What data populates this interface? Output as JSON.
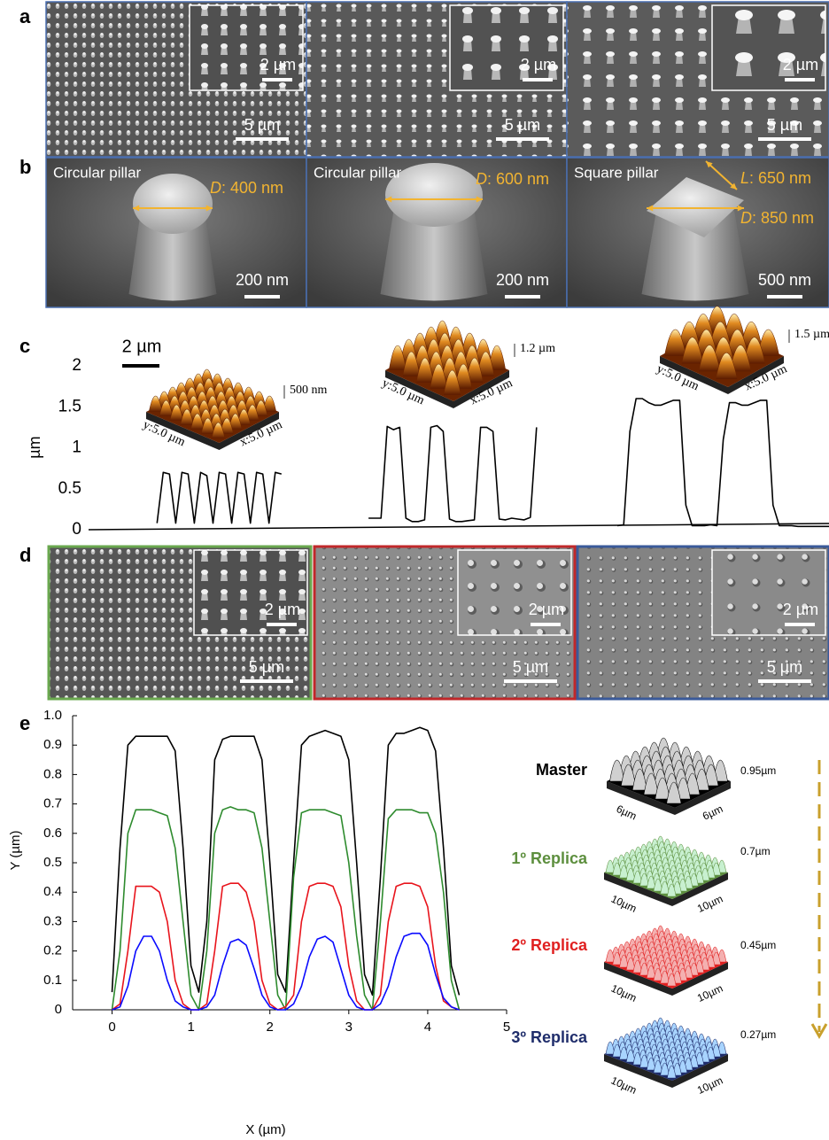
{
  "panels": {
    "a": {
      "label": "a",
      "images": [
        {
          "scale_bar": "5 µm",
          "inset_scale_bar": "2 µm"
        },
        {
          "scale_bar": "5 µm",
          "inset_scale_bar": "2 µm"
        },
        {
          "scale_bar": "5 µm",
          "inset_scale_bar": "2 µm"
        }
      ]
    },
    "b": {
      "label": "b",
      "images": [
        {
          "title": "Circular pillar",
          "dimensions": [
            {
              "symbol": "D",
              "text": ": 400 nm"
            }
          ],
          "scale_bar": "200 nm"
        },
        {
          "title": "Circular pillar",
          "dimensions": [
            {
              "symbol": "D",
              "text": ": 600 nm"
            }
          ],
          "scale_bar": "200 nm"
        },
        {
          "title": "Square pillar",
          "dimensions": [
            {
              "symbol": "L",
              "text": ": 650 nm"
            },
            {
              "symbol": "D",
              "text": ": 850 nm"
            }
          ],
          "scale_bar": "500 nm"
        }
      ]
    },
    "d": {
      "label": "d",
      "images": [
        {
          "scale_bar": "5 µm",
          "inset_scale_bar": "2 µm"
        },
        {
          "scale_bar": "5 µm",
          "inset_scale_bar": "2 µm"
        },
        {
          "scale_bar": "5 µm",
          "inset_scale_bar": "2 µm"
        }
      ]
    }
  },
  "chart_data": [
    {
      "type": "line",
      "panel_label": "c",
      "ylabel": "µm",
      "scale_bar": "2 µm",
      "ylim": [
        0,
        2
      ],
      "yticks": [
        0,
        0.5,
        1,
        1.5,
        2
      ],
      "insets": [
        {
          "z": "500 nm",
          "y": "y:5.0 µm",
          "x": "x:5.0 µm"
        },
        {
          "z": "1.2 µm",
          "y": "y:5.0 µm",
          "x": "x:5.0 µm"
        },
        {
          "z": "1.5 µm",
          "y": "y:5.0 µm",
          "x": "x:5.0 µm"
        }
      ],
      "series": [
        {
          "color": "#000000",
          "values": [
            null,
            null,
            null,
            null,
            null,
            null,
            null,
            null,
            null,
            null,
            null,
            0.08,
            0.7,
            0.68,
            0.08,
            0.7,
            0.68,
            0.08,
            0.7,
            0.66,
            0.08,
            0.7,
            0.68,
            0.08,
            0.7,
            0.68,
            0.08,
            0.7,
            0.68,
            0.08,
            0.7,
            0.68,
            null,
            null,
            null,
            null,
            null,
            null,
            null,
            null,
            null,
            null,
            null,
            null,
            null,
            0.14,
            0.14,
            0.14,
            1.26,
            1.22,
            1.25,
            0.14,
            0.1,
            0.1,
            0.12,
            1.25,
            1.27,
            1.2,
            0.13,
            0.1,
            0.1,
            0.11,
            0.12,
            1.25,
            1.25,
            1.2,
            0.13,
            0.12,
            0.14,
            0.13,
            0.12,
            0.15,
            1.25,
            null,
            null,
            null,
            null,
            null,
            null,
            null,
            null,
            null,
            null,
            null,
            null,
            0.05,
            0.06,
            1.2,
            1.6,
            1.6,
            1.55,
            1.52,
            1.52,
            1.55,
            1.58,
            1.58,
            0.3,
            0.05,
            0.05,
            0.05,
            0.06,
            0.05,
            1.1,
            1.55,
            1.55,
            1.52,
            1.52,
            1.55,
            1.58,
            1.58,
            0.3,
            0.05,
            0.05,
            0.05,
            0.04,
            0.04,
            0.04,
            0.04,
            0.04,
            0.04
          ]
        }
      ]
    },
    {
      "type": "line",
      "panel_label": "e",
      "xlabel": "X (µm)",
      "ylabel": "Y (µm)",
      "xlim": [
        -0.5,
        5
      ],
      "ylim": [
        0,
        1
      ],
      "xticks": [
        0,
        1,
        2,
        3,
        4,
        5
      ],
      "yticks": [
        0,
        0.1,
        0.2,
        0.3,
        0.4,
        0.5,
        0.6,
        0.7,
        0.8,
        0.9,
        {
          "value": 1,
          "label": "1.0"
        }
      ],
      "x": [
        0,
        0.1,
        0.2,
        0.3,
        0.4,
        0.5,
        0.6,
        0.7,
        0.8,
        0.9,
        1,
        1.1,
        1.2,
        1.3,
        1.4,
        1.5,
        1.6,
        1.7,
        1.8,
        1.9,
        2,
        2.1,
        2.2,
        2.3,
        2.4,
        2.5,
        2.6,
        2.7,
        2.8,
        2.9,
        3,
        3.1,
        3.2,
        3.3,
        3.4,
        3.5,
        3.6,
        3.7,
        3.8,
        3.9,
        4,
        4.1,
        4.2,
        4.3,
        4.4,
        4.5
      ],
      "series": [
        {
          "name": "Master",
          "color": "#000000",
          "label_color": "#000000",
          "inset": {
            "height": "0.95µm",
            "x_size": "6µm",
            "y_size": "6µm"
          },
          "values": [
            0.06,
            0.55,
            0.9,
            0.93,
            0.93,
            0.93,
            0.93,
            0.93,
            0.88,
            0.55,
            0.15,
            0.06,
            0.3,
            0.85,
            0.92,
            0.93,
            0.93,
            0.93,
            0.93,
            0.85,
            0.5,
            0.12,
            0.06,
            0.5,
            0.9,
            0.93,
            0.94,
            0.95,
            0.94,
            0.93,
            0.85,
            0.5,
            0.12,
            0.05,
            0.45,
            0.9,
            0.94,
            0.94,
            0.95,
            0.96,
            0.95,
            0.88,
            0.55,
            0.15,
            0.05,
            null
          ]
        },
        {
          "name": "1º Replica",
          "color": "#2e8b2e",
          "label_color": "#5d8f3e",
          "inset": {
            "height": "0.7µm",
            "x_size": "10µm",
            "y_size": "10µm"
          },
          "values": [
            0,
            0.2,
            0.6,
            0.68,
            0.68,
            0.68,
            0.67,
            0.66,
            0.55,
            0.3,
            0.05,
            0,
            0.2,
            0.6,
            0.68,
            0.69,
            0.68,
            0.68,
            0.67,
            0.55,
            0.3,
            0.05,
            0,
            0.45,
            0.67,
            0.68,
            0.68,
            0.68,
            0.67,
            0.66,
            0.5,
            0.25,
            0.05,
            0,
            0.3,
            0.65,
            0.68,
            0.68,
            0.68,
            0.67,
            0.67,
            0.6,
            0.4,
            0.1,
            0,
            null
          ]
        },
        {
          "name": "2º Replica",
          "color": "#e8141c",
          "label_color": "#e02020",
          "inset": {
            "height": "0.45µm",
            "x_size": "10µm",
            "y_size": "10µm"
          },
          "values": [
            0,
            0.02,
            0.2,
            0.42,
            0.42,
            0.42,
            0.4,
            0.3,
            0.1,
            0.02,
            0,
            0,
            0.02,
            0.2,
            0.42,
            0.43,
            0.43,
            0.4,
            0.3,
            0.1,
            0.02,
            0,
            0.01,
            0.05,
            0.3,
            0.42,
            0.43,
            0.43,
            0.42,
            0.35,
            0.15,
            0.03,
            0,
            0,
            0.05,
            0.3,
            0.42,
            0.43,
            0.43,
            0.42,
            0.35,
            0.15,
            0.03,
            0.01,
            0,
            null
          ]
        },
        {
          "name": "3º Replica",
          "color": "#0a0aff",
          "label_color": "#1f2d6b",
          "inset": {
            "height": "0.27µm",
            "x_size": "10µm",
            "y_size": "10µm"
          },
          "values": [
            0,
            0.01,
            0.08,
            0.2,
            0.25,
            0.25,
            0.2,
            0.1,
            0.03,
            0.01,
            0,
            0,
            0.01,
            0.05,
            0.15,
            0.23,
            0.24,
            0.22,
            0.14,
            0.05,
            0.01,
            0,
            0,
            0.02,
            0.08,
            0.18,
            0.24,
            0.25,
            0.23,
            0.14,
            0.05,
            0.01,
            0,
            0,
            0.02,
            0.08,
            0.18,
            0.25,
            0.26,
            0.26,
            0.22,
            0.12,
            0.04,
            0.01,
            0,
            null
          ]
        }
      ]
    }
  ]
}
